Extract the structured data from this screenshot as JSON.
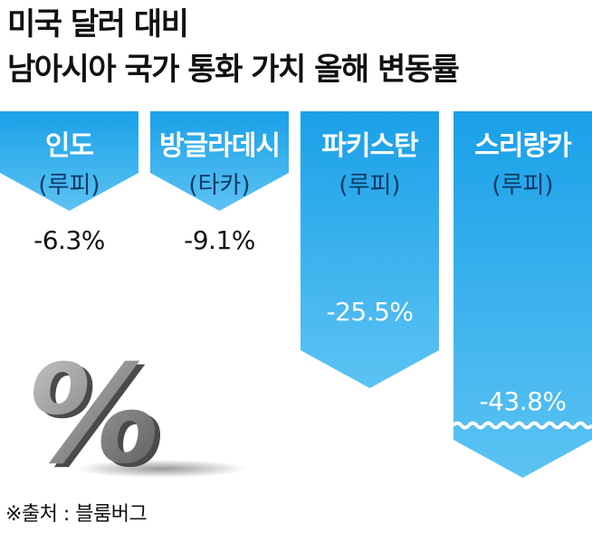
{
  "header": {
    "title_line1": "미국 달러 대비",
    "title_line2": "남아시아 국가 통화 가치 올해 변동률"
  },
  "source": "※출처 : 블룸버그",
  "colors": {
    "bar_top": "#1aa0e8",
    "bar_bottom": "#5cc3f3",
    "text_dark": "#111111",
    "text_light": "#ffffff",
    "currency_text": "#0a3a66"
  },
  "decoration": {
    "icon": "percent-sign-3d-icon"
  },
  "chart_data": {
    "type": "bar",
    "orientation": "vertical-downward",
    "categories": [
      "인도",
      "방글라데시",
      "파키스탄",
      "스리랑카"
    ],
    "currencies": [
      "(루피)",
      "(타카)",
      "(루피)",
      "(루피)"
    ],
    "values": [
      -6.3,
      -9.1,
      -25.5,
      -43.8
    ],
    "value_labels": [
      "-6.3%",
      "-9.1%",
      "-25.5%",
      "-43.8%"
    ],
    "unit": "%",
    "axis_break_on": "스리랑카",
    "title": "미국 달러 대비 남아시아 국가 통화 가치 올해 변동률"
  }
}
